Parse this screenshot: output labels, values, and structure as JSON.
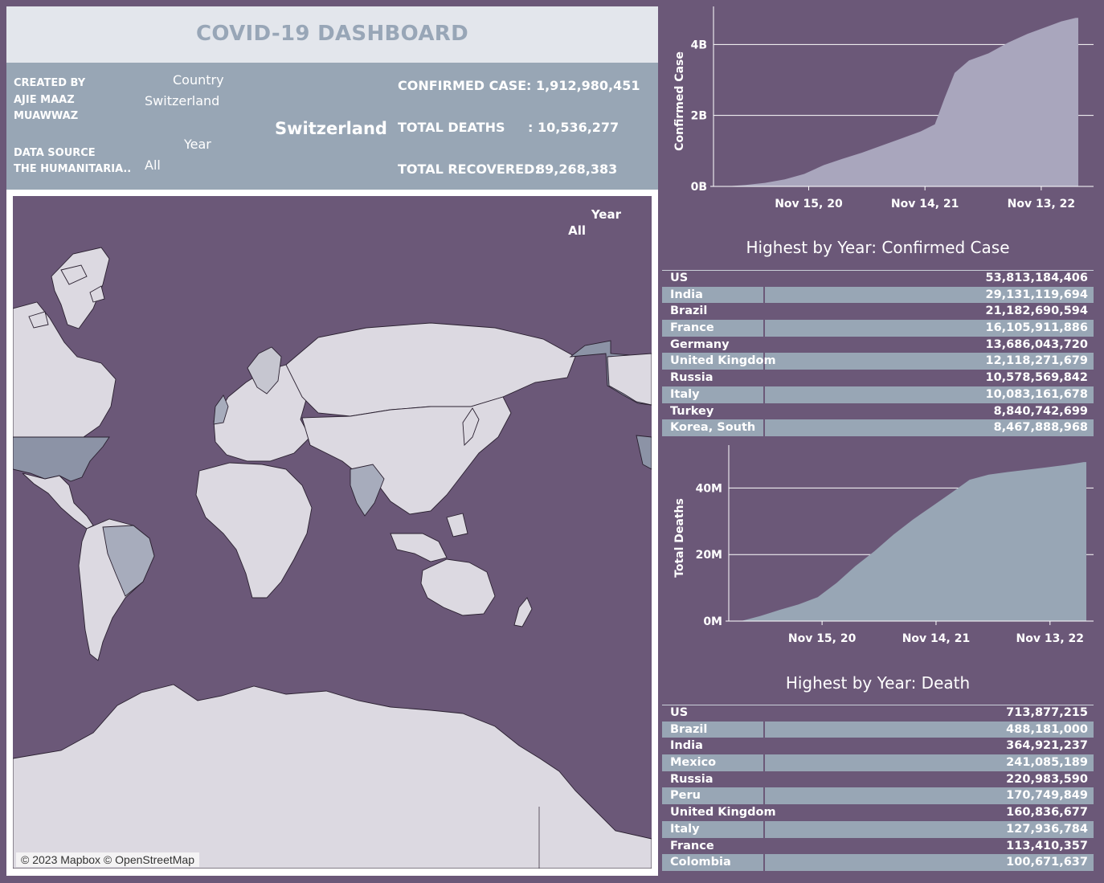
{
  "header": {
    "title": "COVID-19 DASHBOARD"
  },
  "info": {
    "created_by_label": "CREATED BY",
    "created_by_line1": "AJIE MAAZ",
    "created_by_line2": "MUAWWAZ",
    "data_source_label": "DATA SOURCE",
    "data_source_value": "THE HUMANITARIA..",
    "country_label": "Country",
    "country_value": "Switzerland",
    "year_label": "Year",
    "year_value": "All",
    "selected_country": "Switzerland",
    "confirmed_label": "CONFIRMED CASE",
    "confirmed_value": ": 1,912,980,451",
    "deaths_label": "TOTAL DEATHS",
    "deaths_value": ": 10,536,277",
    "recovered_label": "TOTAL RECOVERED:",
    "recovered_value": "89,268,383"
  },
  "map": {
    "year_label": "Year",
    "year_value": "All",
    "attribution": "© 2023 Mapbox © OpenStreetMap"
  },
  "colors": {
    "background": "#6b5878",
    "panel": "#98a6b5",
    "title_bar": "#e3e6ec",
    "area_fill": "#a9a6bd",
    "area_fill_2": "#98a6b5"
  },
  "tables": {
    "confirmed": {
      "title": "Highest by Year: Confirmed Case",
      "rows": [
        {
          "name": "US",
          "value": "53,813,184,406"
        },
        {
          "name": "India",
          "value": "29,131,119,694"
        },
        {
          "name": "Brazil",
          "value": "21,182,690,594"
        },
        {
          "name": "France",
          "value": "16,105,911,886"
        },
        {
          "name": "Germany",
          "value": "13,686,043,720"
        },
        {
          "name": "United Kingdom",
          "value": "12,118,271,679"
        },
        {
          "name": "Russia",
          "value": "10,578,569,842"
        },
        {
          "name": "Italy",
          "value": "10,083,161,678"
        },
        {
          "name": "Turkey",
          "value": "8,840,742,699"
        },
        {
          "name": "Korea, South",
          "value": "8,467,888,968"
        }
      ]
    },
    "deaths": {
      "title": "Highest by Year: Death",
      "rows": [
        {
          "name": "US",
          "value": "713,877,215"
        },
        {
          "name": "Brazil",
          "value": "488,181,000"
        },
        {
          "name": "India",
          "value": "364,921,237"
        },
        {
          "name": "Mexico",
          "value": "241,085,189"
        },
        {
          "name": "Russia",
          "value": "220,983,590"
        },
        {
          "name": "Peru",
          "value": "170,749,849"
        },
        {
          "name": "United Kingdom",
          "value": "160,836,677"
        },
        {
          "name": "Italy",
          "value": "127,936,784"
        },
        {
          "name": "France",
          "value": "113,410,357"
        },
        {
          "name": "Colombia",
          "value": "100,671,637"
        }
      ]
    }
  },
  "chart_data": [
    {
      "type": "area",
      "ylabel": "Confirmed Case",
      "yunit": "B",
      "yticks": [
        "0B",
        "2B",
        "4B"
      ],
      "xticks": [
        "Nov 15, 20",
        "Nov 14, 21",
        "Nov 13, 22"
      ],
      "x_range": [
        "2020-01-22",
        "2023-03-09"
      ],
      "ylim": [
        0,
        4.8
      ],
      "x": [
        "2020-01-22",
        "2020-03-01",
        "2020-05-01",
        "2020-07-01",
        "2020-09-01",
        "2020-11-01",
        "2021-01-01",
        "2021-03-01",
        "2021-05-01",
        "2021-07-01",
        "2021-09-01",
        "2021-11-01",
        "2021-12-15",
        "2022-01-15",
        "2022-02-15",
        "2022-04-01",
        "2022-06-01",
        "2022-08-01",
        "2022-10-01",
        "2022-12-01",
        "2023-01-15",
        "2023-03-01",
        "2023-03-09"
      ],
      "values": [
        0.0,
        0.0,
        0.04,
        0.1,
        0.2,
        0.35,
        0.6,
        0.78,
        0.95,
        1.15,
        1.35,
        1.55,
        1.75,
        2.5,
        3.2,
        3.55,
        3.75,
        4.05,
        4.3,
        4.5,
        4.65,
        4.75,
        4.75
      ]
    },
    {
      "type": "area",
      "ylabel": "Total Deaths",
      "yunit": "M",
      "yticks": [
        "0M",
        "20M",
        "40M"
      ],
      "xticks": [
        "Nov 15, 20",
        "Nov 14, 21",
        "Nov 13, 22"
      ],
      "x_range": [
        "2020-01-22",
        "2023-03-09"
      ],
      "ylim": [
        0,
        50
      ],
      "x": [
        "2020-01-22",
        "2020-03-01",
        "2020-05-01",
        "2020-07-01",
        "2020-09-01",
        "2020-11-01",
        "2021-01-01",
        "2021-03-01",
        "2021-05-01",
        "2021-07-01",
        "2021-09-01",
        "2021-11-01",
        "2022-01-01",
        "2022-03-01",
        "2022-05-01",
        "2022-07-01",
        "2022-09-01",
        "2022-11-01",
        "2023-01-01",
        "2023-03-01",
        "2023-03-09"
      ],
      "values": [
        0.0,
        0.0,
        1.5,
        3.3,
        5.0,
        7.2,
        11.5,
        16.5,
        21.0,
        26.0,
        30.5,
        34.5,
        38.5,
        42.5,
        44.0,
        44.8,
        45.5,
        46.2,
        46.9,
        47.8,
        47.8
      ]
    }
  ]
}
